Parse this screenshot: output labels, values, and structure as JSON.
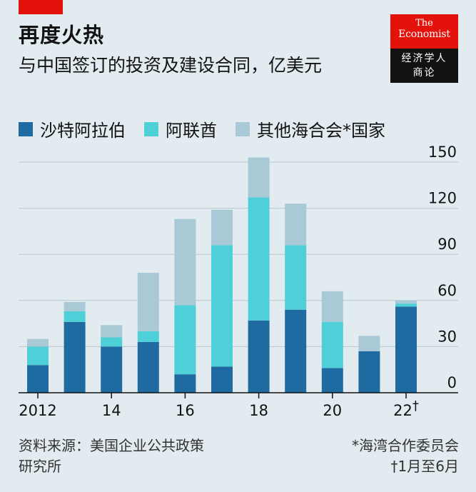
{
  "header": {
    "title": "再度火热",
    "subtitle": "与中国签订的投资及建设合同，亿美元"
  },
  "logo": {
    "line1": "The",
    "line2": "Economist",
    "line3": "经济学人",
    "line4": "商论"
  },
  "colors": {
    "saudi": "#1f6aa0",
    "uae": "#4fcfd8",
    "other": "#a9c9d6",
    "brand_red": "#e3120b",
    "background": "#e1ebf0"
  },
  "chart_data": {
    "type": "bar",
    "stacked": true,
    "categories": [
      "2012",
      "2013",
      "2014",
      "2015",
      "2016",
      "2017",
      "2018",
      "2019",
      "2020",
      "2021",
      "2022"
    ],
    "x_tick_labels": [
      "2012",
      "",
      "14",
      "",
      "16",
      "",
      "18",
      "",
      "20",
      "",
      "22"
    ],
    "x_tick_suffix_last": "†",
    "series": [
      {
        "name": "沙特阿拉伯",
        "values": [
          18,
          46,
          30,
          33,
          12,
          17,
          47,
          54,
          16,
          27,
          56
        ]
      },
      {
        "name": "阿联酋",
        "values": [
          12,
          7,
          6,
          7,
          45,
          79,
          80,
          42,
          30,
          0,
          2
        ]
      },
      {
        "name": "其他海合会*国家",
        "values": [
          5,
          6,
          8,
          38,
          56,
          23,
          26,
          27,
          20,
          10,
          2
        ]
      }
    ],
    "y_ticks": [
      "0",
      "30",
      "60",
      "90",
      "120",
      "150"
    ],
    "ylim": [
      0,
      150
    ],
    "grid": true,
    "legend_position": "top"
  },
  "footer": {
    "source": "资料来源：美国企业公共政策研究所",
    "note1": "*海湾合作委员会",
    "note2": "†1月至6月"
  }
}
